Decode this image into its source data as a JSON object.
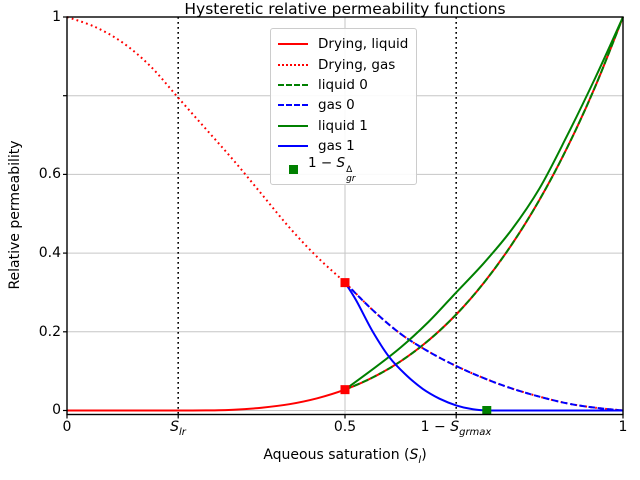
{
  "title": "Hysteretic relative permeability functions",
  "axes": {
    "ylabel": "Relative permeability",
    "xlabel": {
      "pre": "Aqueous saturation (",
      "base": "S",
      "sub": "l",
      "post": ")"
    },
    "x_ticks": [
      {
        "v": 0,
        "label": "0"
      },
      {
        "v": 0.2,
        "math": {
          "pre": "",
          "base": "S",
          "sub": "lr"
        }
      },
      {
        "v": 0.5,
        "label": "0.5"
      },
      {
        "v": 0.7,
        "math": {
          "pre": "1 − ",
          "base": "S",
          "sub": "grmax"
        }
      },
      {
        "v": 1,
        "label": "1"
      }
    ],
    "y_ticks": [
      {
        "v": 0,
        "label": "0"
      },
      {
        "v": 0.2,
        "label": "0.2"
      },
      {
        "v": 0.4,
        "label": "0.4"
      },
      {
        "v": 0.6,
        "label": "0.6"
      },
      {
        "v": 0.8,
        "label": ""
      },
      {
        "v": 1,
        "label": "1"
      }
    ]
  },
  "legend": {
    "position": "upper center",
    "entries": [
      {
        "label": "Drying, liquid",
        "style": "solid",
        "color": "#ff0000"
      },
      {
        "label": "Drying, gas",
        "style": "dotted",
        "color": "#ff0000"
      },
      {
        "label": "liquid 0",
        "style": "dashed",
        "color": "#008000"
      },
      {
        "label": "gas 0",
        "style": "dashed",
        "color": "#0000ff"
      },
      {
        "label": "liquid 1",
        "style": "solid",
        "color": "#008000"
      },
      {
        "label": "gas 1",
        "style": "solid",
        "color": "#0000ff"
      },
      {
        "label_math": {
          "pre": "1 − ",
          "base": "S",
          "sup": "Δ",
          "sub": "gr"
        },
        "style": "marker",
        "color": "#008000"
      }
    ]
  },
  "chart_data": {
    "type": "line",
    "title": "Hysteretic relative permeability functions",
    "xlabel": "Aqueous saturation (S_l)",
    "ylabel": "Relative permeability",
    "xlim": [
      0,
      1
    ],
    "ylim": [
      -0.013,
      1.0
    ],
    "grid": true,
    "grid_color": "#c6c6c6",
    "grid_x": [
      0.5
    ],
    "grid_y": [
      0,
      0.2,
      0.4,
      0.6,
      0.8
    ],
    "series": [
      {
        "name": "Drying, liquid",
        "color": "#ff0000",
        "linestyle": "solid",
        "x": [
          0,
          0.05,
          0.1,
          0.15,
          0.2,
          0.25,
          0.3,
          0.35,
          0.4,
          0.45,
          0.5,
          0.55,
          0.6,
          0.65,
          0.7,
          0.75,
          0.8,
          0.85,
          0.9,
          0.95,
          1
        ],
        "y": [
          0,
          0,
          0,
          0,
          0,
          0.0002,
          0.002,
          0.007,
          0.016,
          0.031,
          0.053,
          0.084,
          0.125,
          0.178,
          0.244,
          0.325,
          0.422,
          0.536,
          0.669,
          0.823,
          1.0
        ]
      },
      {
        "name": "Drying, gas",
        "color": "#ff0000",
        "linestyle": "dotted",
        "x": [
          0,
          0.05,
          0.1,
          0.15,
          0.2,
          0.25,
          0.3,
          0.35,
          0.4,
          0.45,
          0.5,
          0.55,
          0.6,
          0.65,
          0.7,
          0.75,
          0.8,
          0.85,
          0.9,
          0.95,
          1
        ],
        "y": [
          1.0,
          0.975,
          0.935,
          0.875,
          0.795,
          0.715,
          0.635,
          0.55,
          0.465,
          0.39,
          0.325,
          0.255,
          0.195,
          0.15,
          0.113,
          0.082,
          0.056,
          0.035,
          0.018,
          0.007,
          0
        ]
      },
      {
        "name": "liquid 0",
        "color": "#008000",
        "linestyle": "dashed",
        "x": [
          0.5,
          0.55,
          0.6,
          0.65,
          0.7,
          0.75,
          0.8,
          0.85,
          0.9,
          0.95,
          1
        ],
        "y": [
          0.053,
          0.084,
          0.125,
          0.178,
          0.244,
          0.325,
          0.422,
          0.536,
          0.669,
          0.823,
          1.0
        ]
      },
      {
        "name": "gas 0",
        "color": "#0000ff",
        "linestyle": "dashed",
        "x": [
          0.5,
          0.55,
          0.6,
          0.65,
          0.7,
          0.75,
          0.8,
          0.85,
          0.9,
          0.95,
          1
        ],
        "y": [
          0.325,
          0.255,
          0.195,
          0.15,
          0.113,
          0.082,
          0.056,
          0.035,
          0.018,
          0.007,
          0
        ]
      },
      {
        "name": "liquid 1",
        "color": "#008000",
        "linestyle": "solid",
        "x": [
          0.5,
          0.55,
          0.6,
          0.65,
          0.7,
          0.75,
          0.8,
          0.85,
          0.9,
          0.95,
          1
        ],
        "y": [
          0.053,
          0.105,
          0.16,
          0.225,
          0.3,
          0.375,
          0.46,
          0.565,
          0.7,
          0.845,
          1.0
        ]
      },
      {
        "name": "gas 1",
        "color": "#0000ff",
        "linestyle": "solid",
        "x": [
          0.5,
          0.52,
          0.55,
          0.58,
          0.61,
          0.64,
          0.67,
          0.7,
          0.73,
          0.755,
          0.8,
          0.9,
          1.0
        ],
        "y": [
          0.325,
          0.28,
          0.2,
          0.135,
          0.09,
          0.055,
          0.03,
          0.013,
          0.003,
          0,
          0,
          0,
          0
        ]
      }
    ],
    "markers": [
      {
        "name": "turning-point-gas",
        "x": 0.5,
        "y": 0.325,
        "color": "#ff0000",
        "size": 9
      },
      {
        "name": "turning-point-liquid",
        "x": 0.5,
        "y": 0.053,
        "color": "#ff0000",
        "size": 9
      },
      {
        "name": "one-minus-Sgr-delta",
        "x": 0.755,
        "y": 0,
        "color": "#008000",
        "size": 9
      }
    ],
    "vlines": [
      {
        "x": 0.2,
        "label": "S_lr",
        "color": "#000000",
        "linestyle": "dotted"
      },
      {
        "x": 0.7,
        "label": "1 − S_grmax",
        "color": "#000000",
        "linestyle": "dotted"
      }
    ]
  }
}
